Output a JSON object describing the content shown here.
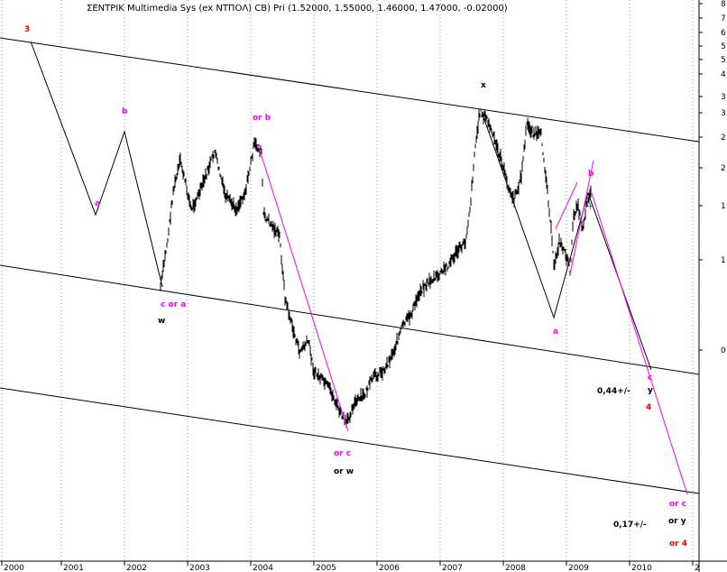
{
  "chart_data": {
    "type": "line",
    "title": "ΣΕΝΤΡΙΚ Multimedia Sys (ex ΝΤΠΟΛ) CB) Pri (1.52000, 1.55000, 1.46000, 1.47000, -0.02000)",
    "x_tick_labels": [
      "2000",
      "2001",
      "2002",
      "2003",
      "2004",
      "2005",
      "2006",
      "2007",
      "2008",
      "2009",
      "2010",
      "2"
    ],
    "y_tick_labels": [
      "8",
      "7",
      "6",
      "5",
      "5",
      "4",
      "3",
      "3",
      "2",
      "2",
      "1",
      "1",
      "0"
    ],
    "y_scale": "log",
    "grid": "vertical dotted",
    "colors": {
      "price": "#000000",
      "channel": "#000000",
      "wave_projection": "#ff00ff",
      "label_magenta": "#ff00ff",
      "label_red": "#ff0000",
      "label_black": "#000000"
    },
    "wave_labels": [
      {
        "text": "3",
        "color": "red"
      },
      {
        "text": "b",
        "color": "magenta"
      },
      {
        "text": "a",
        "color": "magenta"
      },
      {
        "text": "c or a",
        "color": "magenta"
      },
      {
        "text": "w",
        "color": "black"
      },
      {
        "text": "or b",
        "color": "magenta"
      },
      {
        "text": "or c",
        "color": "magenta"
      },
      {
        "text": "or w",
        "color": "black"
      },
      {
        "text": "x",
        "color": "black"
      },
      {
        "text": "b",
        "color": "magenta"
      },
      {
        "text": "a",
        "color": "magenta"
      },
      {
        "text": "c",
        "color": "magenta"
      },
      {
        "text": "y",
        "color": "black"
      },
      {
        "text": "4",
        "color": "red"
      },
      {
        "text": "or c",
        "color": "magenta"
      },
      {
        "text": "or y",
        "color": "black"
      },
      {
        "text": "or 4",
        "color": "red"
      }
    ],
    "notes": [
      "0,44+/-",
      "0,17+/-"
    ]
  }
}
